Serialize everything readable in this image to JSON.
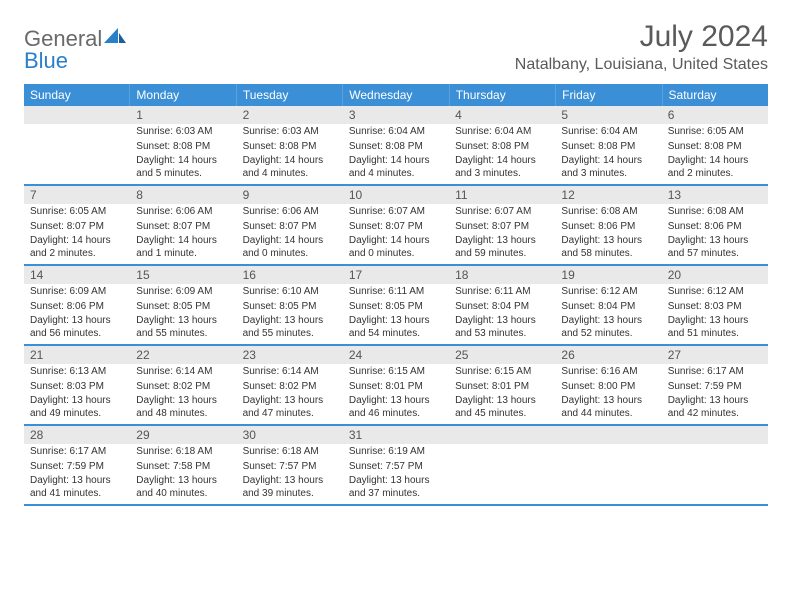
{
  "brand": {
    "part1": "General",
    "part2": "Blue"
  },
  "title": "July 2024",
  "location": "Natalbany, Louisiana, United States",
  "colors": {
    "header_bg": "#3b8fd6",
    "header_text": "#ffffff",
    "daynum_bg": "#e9e9e9",
    "text": "#333333",
    "rule": "#3b8fd6"
  },
  "day_headers": [
    "Sunday",
    "Monday",
    "Tuesday",
    "Wednesday",
    "Thursday",
    "Friday",
    "Saturday"
  ],
  "weeks": [
    [
      {
        "n": "",
        "lines": []
      },
      {
        "n": "1",
        "lines": [
          "Sunrise: 6:03 AM",
          "Sunset: 8:08 PM",
          "Daylight: 14 hours and 5 minutes."
        ]
      },
      {
        "n": "2",
        "lines": [
          "Sunrise: 6:03 AM",
          "Sunset: 8:08 PM",
          "Daylight: 14 hours and 4 minutes."
        ]
      },
      {
        "n": "3",
        "lines": [
          "Sunrise: 6:04 AM",
          "Sunset: 8:08 PM",
          "Daylight: 14 hours and 4 minutes."
        ]
      },
      {
        "n": "4",
        "lines": [
          "Sunrise: 6:04 AM",
          "Sunset: 8:08 PM",
          "Daylight: 14 hours and 3 minutes."
        ]
      },
      {
        "n": "5",
        "lines": [
          "Sunrise: 6:04 AM",
          "Sunset: 8:08 PM",
          "Daylight: 14 hours and 3 minutes."
        ]
      },
      {
        "n": "6",
        "lines": [
          "Sunrise: 6:05 AM",
          "Sunset: 8:08 PM",
          "Daylight: 14 hours and 2 minutes."
        ]
      }
    ],
    [
      {
        "n": "7",
        "lines": [
          "Sunrise: 6:05 AM",
          "Sunset: 8:07 PM",
          "Daylight: 14 hours and 2 minutes."
        ]
      },
      {
        "n": "8",
        "lines": [
          "Sunrise: 6:06 AM",
          "Sunset: 8:07 PM",
          "Daylight: 14 hours and 1 minute."
        ]
      },
      {
        "n": "9",
        "lines": [
          "Sunrise: 6:06 AM",
          "Sunset: 8:07 PM",
          "Daylight: 14 hours and 0 minutes."
        ]
      },
      {
        "n": "10",
        "lines": [
          "Sunrise: 6:07 AM",
          "Sunset: 8:07 PM",
          "Daylight: 14 hours and 0 minutes."
        ]
      },
      {
        "n": "11",
        "lines": [
          "Sunrise: 6:07 AM",
          "Sunset: 8:07 PM",
          "Daylight: 13 hours and 59 minutes."
        ]
      },
      {
        "n": "12",
        "lines": [
          "Sunrise: 6:08 AM",
          "Sunset: 8:06 PM",
          "Daylight: 13 hours and 58 minutes."
        ]
      },
      {
        "n": "13",
        "lines": [
          "Sunrise: 6:08 AM",
          "Sunset: 8:06 PM",
          "Daylight: 13 hours and 57 minutes."
        ]
      }
    ],
    [
      {
        "n": "14",
        "lines": [
          "Sunrise: 6:09 AM",
          "Sunset: 8:06 PM",
          "Daylight: 13 hours and 56 minutes."
        ]
      },
      {
        "n": "15",
        "lines": [
          "Sunrise: 6:09 AM",
          "Sunset: 8:05 PM",
          "Daylight: 13 hours and 55 minutes."
        ]
      },
      {
        "n": "16",
        "lines": [
          "Sunrise: 6:10 AM",
          "Sunset: 8:05 PM",
          "Daylight: 13 hours and 55 minutes."
        ]
      },
      {
        "n": "17",
        "lines": [
          "Sunrise: 6:11 AM",
          "Sunset: 8:05 PM",
          "Daylight: 13 hours and 54 minutes."
        ]
      },
      {
        "n": "18",
        "lines": [
          "Sunrise: 6:11 AM",
          "Sunset: 8:04 PM",
          "Daylight: 13 hours and 53 minutes."
        ]
      },
      {
        "n": "19",
        "lines": [
          "Sunrise: 6:12 AM",
          "Sunset: 8:04 PM",
          "Daylight: 13 hours and 52 minutes."
        ]
      },
      {
        "n": "20",
        "lines": [
          "Sunrise: 6:12 AM",
          "Sunset: 8:03 PM",
          "Daylight: 13 hours and 51 minutes."
        ]
      }
    ],
    [
      {
        "n": "21",
        "lines": [
          "Sunrise: 6:13 AM",
          "Sunset: 8:03 PM",
          "Daylight: 13 hours and 49 minutes."
        ]
      },
      {
        "n": "22",
        "lines": [
          "Sunrise: 6:14 AM",
          "Sunset: 8:02 PM",
          "Daylight: 13 hours and 48 minutes."
        ]
      },
      {
        "n": "23",
        "lines": [
          "Sunrise: 6:14 AM",
          "Sunset: 8:02 PM",
          "Daylight: 13 hours and 47 minutes."
        ]
      },
      {
        "n": "24",
        "lines": [
          "Sunrise: 6:15 AM",
          "Sunset: 8:01 PM",
          "Daylight: 13 hours and 46 minutes."
        ]
      },
      {
        "n": "25",
        "lines": [
          "Sunrise: 6:15 AM",
          "Sunset: 8:01 PM",
          "Daylight: 13 hours and 45 minutes."
        ]
      },
      {
        "n": "26",
        "lines": [
          "Sunrise: 6:16 AM",
          "Sunset: 8:00 PM",
          "Daylight: 13 hours and 44 minutes."
        ]
      },
      {
        "n": "27",
        "lines": [
          "Sunrise: 6:17 AM",
          "Sunset: 7:59 PM",
          "Daylight: 13 hours and 42 minutes."
        ]
      }
    ],
    [
      {
        "n": "28",
        "lines": [
          "Sunrise: 6:17 AM",
          "Sunset: 7:59 PM",
          "Daylight: 13 hours and 41 minutes."
        ]
      },
      {
        "n": "29",
        "lines": [
          "Sunrise: 6:18 AM",
          "Sunset: 7:58 PM",
          "Daylight: 13 hours and 40 minutes."
        ]
      },
      {
        "n": "30",
        "lines": [
          "Sunrise: 6:18 AM",
          "Sunset: 7:57 PM",
          "Daylight: 13 hours and 39 minutes."
        ]
      },
      {
        "n": "31",
        "lines": [
          "Sunrise: 6:19 AM",
          "Sunset: 7:57 PM",
          "Daylight: 13 hours and 37 minutes."
        ]
      },
      {
        "n": "",
        "lines": []
      },
      {
        "n": "",
        "lines": []
      },
      {
        "n": "",
        "lines": []
      }
    ]
  ]
}
